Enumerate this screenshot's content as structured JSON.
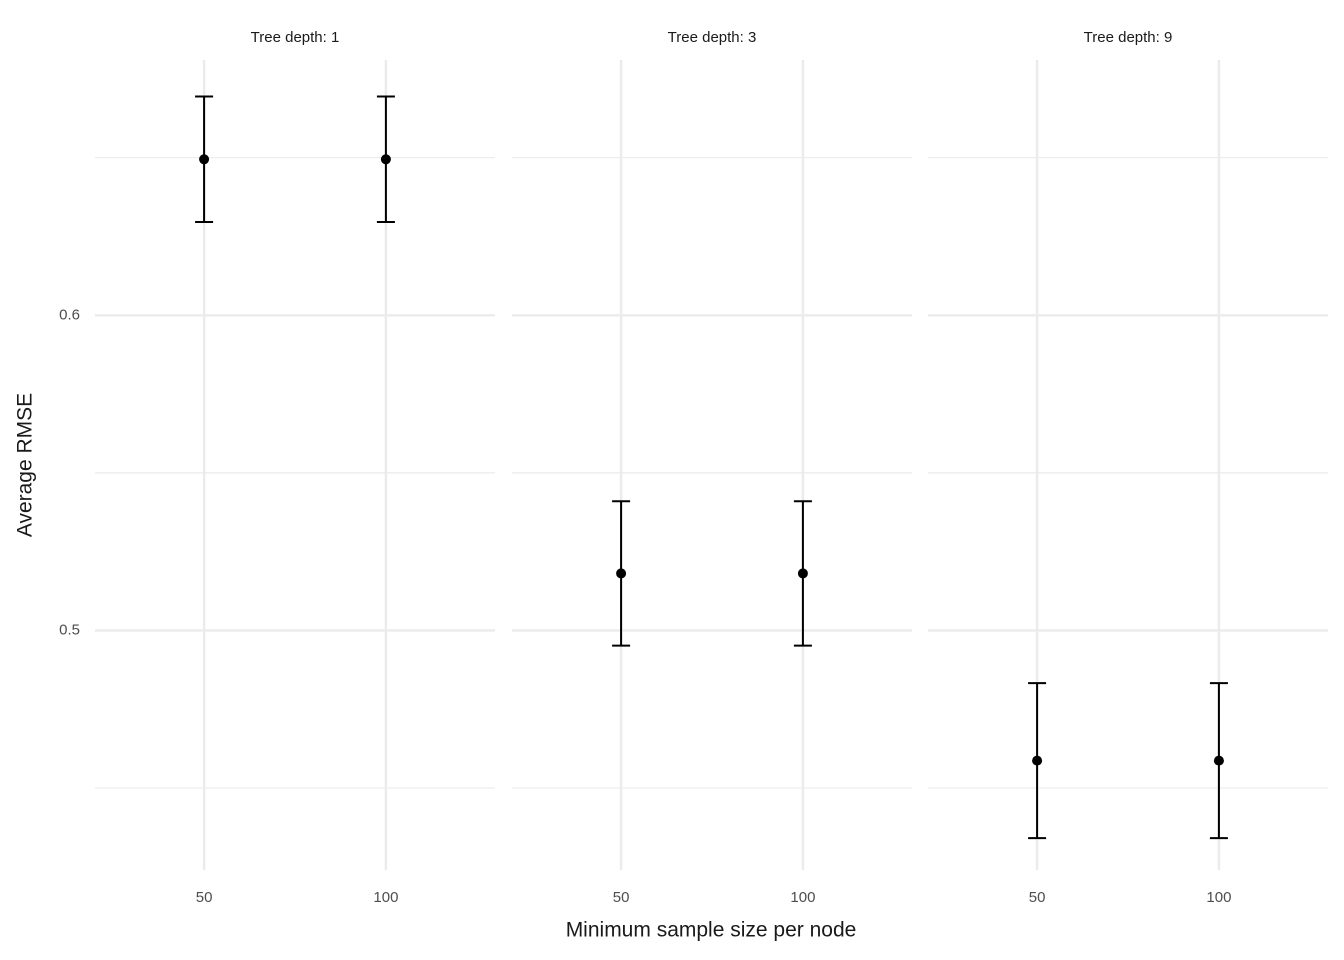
{
  "chart_data": [
    {
      "type": "errorbar",
      "title": "Tree depth: 1",
      "ylabel": "Average RMSE",
      "categories": [
        "50",
        "100"
      ],
      "values": [
        0.6495,
        0.6495
      ],
      "errors": [
        0.0199,
        0.0199
      ],
      "color": "#000000",
      "ylim": [
        0.424,
        0.681
      ],
      "yticks": [
        0.5,
        0.6
      ],
      "yminorticks": [
        0.45,
        0.55,
        0.65
      ],
      "grid": true
    },
    {
      "type": "errorbar",
      "title": "Tree depth: 3",
      "xlabel": "Minimum sample size per node",
      "categories": [
        "50",
        "100"
      ],
      "values": [
        0.5181,
        0.5181
      ],
      "errors": [
        0.0229,
        0.0229
      ],
      "color": "#000000",
      "ylim": [
        0.424,
        0.681
      ],
      "yticks": [
        0.5,
        0.6
      ],
      "yminorticks": [
        0.45,
        0.55,
        0.65
      ],
      "grid": true
    },
    {
      "type": "errorbar",
      "title": "Tree depth: 9",
      "categories": [
        "50",
        "100"
      ],
      "values": [
        0.4587,
        0.4587
      ],
      "errors": [
        0.0246,
        0.0246
      ],
      "color": "#000000",
      "ylim": [
        0.424,
        0.681
      ],
      "yticks": [
        0.5,
        0.6
      ],
      "yminorticks": [
        0.45,
        0.55,
        0.65
      ],
      "grid": true
    }
  ]
}
